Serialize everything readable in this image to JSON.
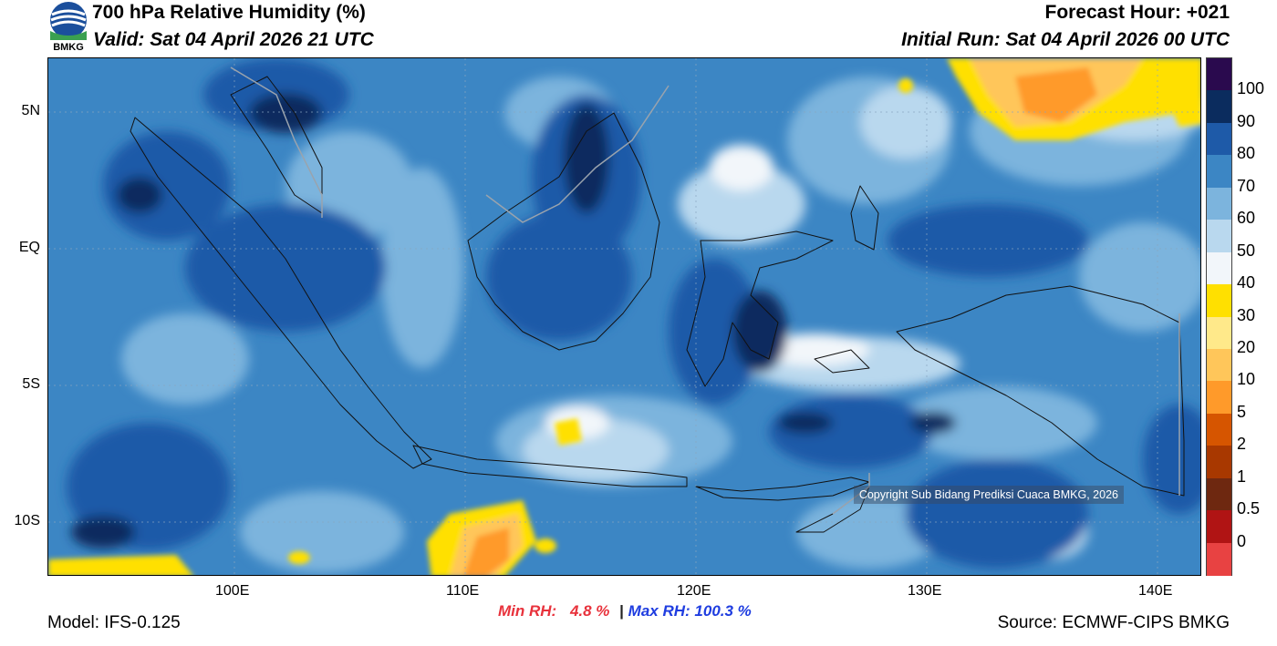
{
  "header": {
    "title": "700 hPa Relative Humidity (%)",
    "valid": "Valid: Sat 04 April 2026 21 UTC",
    "forecast_hour": "Forecast Hour: +021",
    "initial_run": "Initial Run: Sat 04 April 2026 00 UTC",
    "logo_text": "BMKG"
  },
  "map": {
    "lat_labels": [
      "5N",
      "EQ",
      "5S",
      "10S"
    ],
    "lon_labels": [
      "100E",
      "110E",
      "120E",
      "130E",
      "140E"
    ],
    "copyright": "Copyright Sub Bidang Prediksi Cuaca BMKG, 2026"
  },
  "colorbar": {
    "labels": [
      "100",
      "90",
      "80",
      "70",
      "60",
      "50",
      "40",
      "30",
      "20",
      "10",
      "5",
      "2",
      "1",
      "0.5",
      "0"
    ],
    "colors": [
      "#2a0a4e",
      "#0b2c5e",
      "#1e5aa8",
      "#3c86c4",
      "#7cb4dd",
      "#b9d8ee",
      "#f2f6fa",
      "#ffe000",
      "#ffe98a",
      "#ffc65a",
      "#ff9a2a",
      "#d65500",
      "#a83800",
      "#6e2810",
      "#b01414",
      "#e84242"
    ]
  },
  "footer": {
    "min_label": "Min RH:",
    "min_value": "4.8 %",
    "separator": "|",
    "max_label": "Max RH:",
    "max_value": "100.3 %",
    "model": "Model: IFS-0.125",
    "source": "Source: ECMWF-CIPS BMKG"
  }
}
